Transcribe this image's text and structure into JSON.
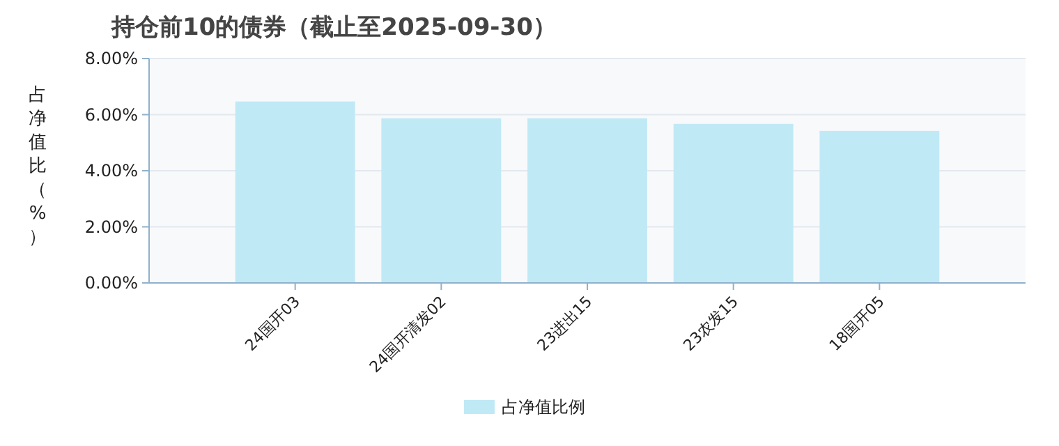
{
  "chart_data": {
    "type": "bar",
    "title": "持仓前10的债券（截止至2025-09-30）",
    "ylabel": "占净值比（%）",
    "categories": [
      "24国开03",
      "24国开清发02",
      "23进出15",
      "23农发15",
      "18国开05"
    ],
    "series": [
      {
        "name": "占净值比例",
        "color": "#c0e9f6",
        "values": [
          6.47,
          5.87,
          5.87,
          5.67,
          5.42
        ]
      }
    ],
    "ylim": [
      0,
      8
    ],
    "yticks": [
      {
        "value": 0,
        "label": "0.00%"
      },
      {
        "value": 2,
        "label": "2.00%"
      },
      {
        "value": 4,
        "label": "4.00%"
      },
      {
        "value": 6,
        "label": "6.00%"
      },
      {
        "value": 8,
        "label": "8.00%"
      }
    ],
    "grid": "y",
    "legend": "bottom"
  }
}
